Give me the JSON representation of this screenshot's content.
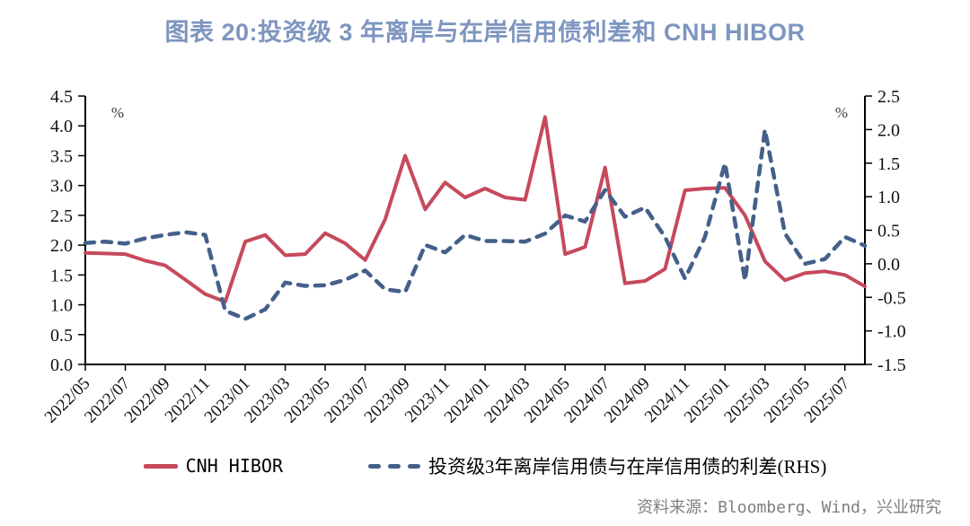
{
  "title": "图表 20:投资级 3 年离岸与在岸信用债利差和  CNH HIBOR",
  "source": "资料来源：Bloomberg、Wind，兴业研究",
  "left_axis": {
    "unit": "%",
    "min": 0.0,
    "max": 4.5,
    "step": 0.5,
    "tick_labels": [
      "4.5",
      "4.0",
      "3.5",
      "3.0",
      "2.5",
      "2.0",
      "1.5",
      "1.0",
      "0.5",
      "0.0"
    ]
  },
  "right_axis": {
    "unit": "%",
    "min": -1.5,
    "max": 2.5,
    "step": 0.5,
    "tick_labels": [
      "2.5",
      "2.0",
      "1.5",
      "1.0",
      "0.5",
      "0.0",
      "-0.5",
      "-1.0",
      "-1.5"
    ]
  },
  "legend": {
    "items": [
      {
        "label": "CNH HIBOR"
      },
      {
        "label": "投资级3年离岸信用债与在岸信用债的利差(RHS)"
      }
    ]
  },
  "chart_data": {
    "type": "line",
    "title": "图表 20:投资级 3 年离岸与在岸信用债利差和 CNH HIBOR",
    "grid": false,
    "legend_position": "bottom",
    "left_ylim": [
      0.0,
      4.5
    ],
    "right_ylim": [
      -1.5,
      2.5
    ],
    "x": [
      "2022/05",
      "2022/06",
      "2022/07",
      "2022/08",
      "2022/09",
      "2022/10",
      "2022/11",
      "2022/12",
      "2023/01",
      "2023/02",
      "2023/03",
      "2023/04",
      "2023/05",
      "2023/06",
      "2023/07",
      "2023/08",
      "2023/09",
      "2023/10",
      "2023/11",
      "2023/12",
      "2024/01",
      "2024/02",
      "2024/03",
      "2024/04",
      "2024/05",
      "2024/06",
      "2024/07",
      "2024/08",
      "2024/09",
      "2024/10",
      "2024/11",
      "2024/12",
      "2025/01",
      "2025/02",
      "2025/03",
      "2025/04",
      "2025/05",
      "2025/06",
      "2025/07",
      "2025/08"
    ],
    "x_axis_visible_tick_labels": [
      "2022/05",
      "2022/07",
      "2022/09",
      "2022/11",
      "2023/01",
      "2023/03",
      "2023/05",
      "2023/07",
      "2023/09",
      "2023/11",
      "2024/01",
      "2024/03",
      "2024/05",
      "2024/07",
      "2024/09",
      "2024/11",
      "2025/01",
      "2025/03",
      "2025/05",
      "2025/07"
    ],
    "series": [
      {
        "name": "CNH HIBOR",
        "axis": "left",
        "unit": "%",
        "color": "#c6495c",
        "line_style": "solid",
        "data_name": "cnh-hibor-line",
        "values": [
          1.87,
          1.86,
          1.85,
          1.74,
          1.66,
          1.42,
          1.18,
          1.05,
          2.06,
          2.17,
          1.83,
          1.85,
          2.2,
          2.03,
          1.75,
          2.43,
          3.5,
          2.6,
          3.05,
          2.8,
          2.95,
          2.8,
          2.76,
          4.15,
          1.85,
          1.97,
          3.3,
          1.36,
          1.4,
          1.6,
          2.92,
          2.95,
          2.96,
          2.5,
          1.73,
          1.41,
          1.53,
          1.56,
          1.5,
          1.31
        ]
      },
      {
        "name": "投资级3年离岸信用债与在岸信用债的利差(RHS)",
        "axis": "right",
        "unit": "%",
        "color": "#44608a",
        "line_style": "dashed",
        "data_name": "offshore-onshore-spread-line",
        "values": [
          0.31,
          0.33,
          0.3,
          0.38,
          0.43,
          0.47,
          0.43,
          -0.7,
          -0.82,
          -0.68,
          -0.28,
          -0.33,
          -0.32,
          -0.24,
          -0.1,
          -0.38,
          -0.42,
          0.28,
          0.17,
          0.43,
          0.34,
          0.34,
          0.33,
          0.45,
          0.72,
          0.63,
          1.1,
          0.7,
          0.84,
          0.4,
          -0.22,
          0.4,
          1.5,
          -0.25,
          2.0,
          0.45,
          0.0,
          0.07,
          0.4,
          0.27
        ]
      }
    ]
  }
}
